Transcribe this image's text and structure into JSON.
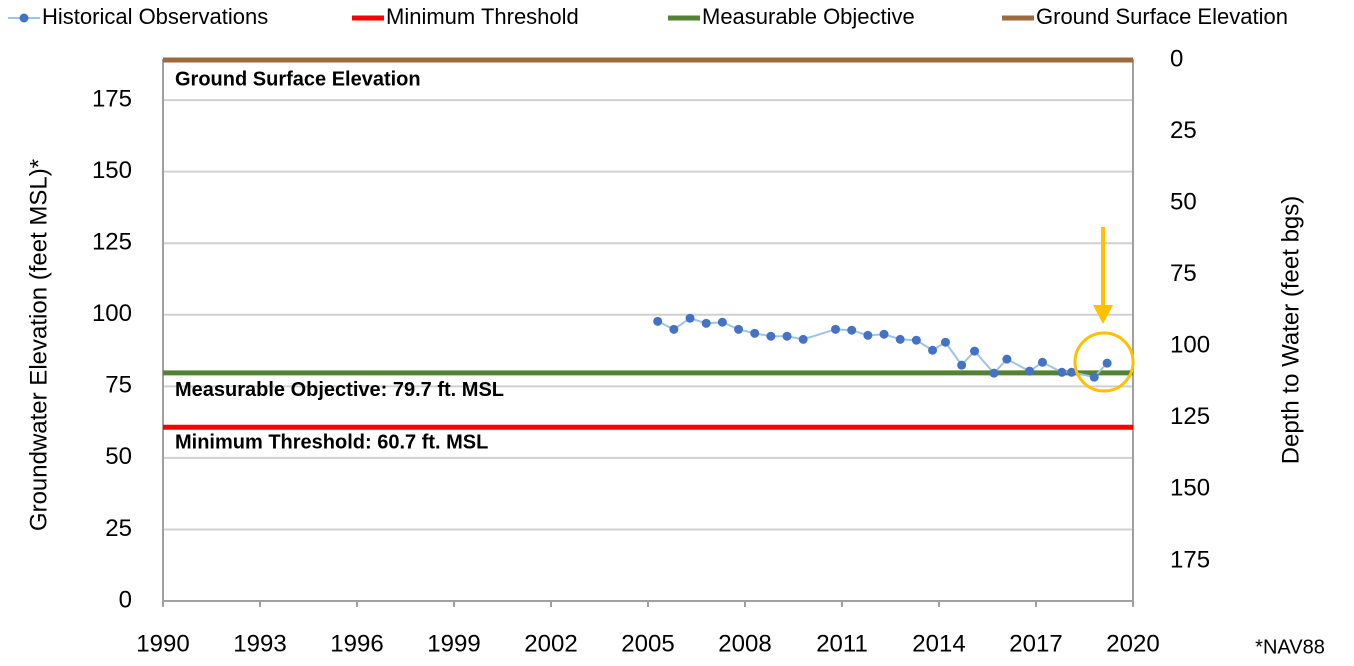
{
  "chart_data": {
    "type": "line",
    "legend_position": "top",
    "y_label": "Groundwater Elevation (feet MSL)*",
    "y2_label": "Depth to Water (feet bgs)",
    "footnote": "*NAV88",
    "xlim": [
      1990,
      2020
    ],
    "xticks": [
      1990,
      1993,
      1996,
      1999,
      2002,
      2005,
      2008,
      2011,
      2014,
      2017,
      2020
    ],
    "ylim": [
      0,
      189
    ],
    "yticks": [
      0,
      25,
      50,
      75,
      100,
      125,
      150,
      175
    ],
    "y2lim": [
      189,
      0
    ],
    "y2ticks": [
      0,
      25,
      50,
      75,
      100,
      125,
      150,
      175
    ],
    "grid": true,
    "series": [
      {
        "name": "Historical Observations",
        "color": "#4472c4",
        "line_color": "#9dc3e6",
        "x": [
          2005.3,
          2005.8,
          2006.3,
          2006.8,
          2007.3,
          2007.8,
          2008.3,
          2008.8,
          2009.3,
          2009.8,
          2010.8,
          2011.3,
          2011.8,
          2012.3,
          2012.8,
          2013.3,
          2013.8,
          2014.2,
          2014.7,
          2015.1,
          2015.7,
          2016.1,
          2016.8,
          2017.2,
          2017.8,
          2018.1,
          2018.8,
          2019.2
        ],
        "values": [
          97.7,
          94.9,
          98.8,
          97.0,
          97.4,
          94.9,
          93.5,
          92.5,
          92.5,
          91.4,
          94.9,
          94.6,
          92.8,
          93.2,
          91.4,
          91.1,
          87.6,
          90.4,
          82.4,
          87.3,
          79.6,
          84.5,
          80.3,
          83.4,
          79.9,
          79.9,
          78.2,
          83.1
        ]
      }
    ],
    "reference_lines": [
      {
        "name": "Minimum Threshold",
        "color": "#ff0000",
        "value": 60.7,
        "label": "Minimum Threshold: 60.7 ft. MSL"
      },
      {
        "name": "Measurable Objective",
        "color": "#548235",
        "value": 79.7,
        "label": "Measurable Objective: 79.7 ft. MSL"
      },
      {
        "name": "Ground Surface Elevation",
        "color": "#9c6a3c",
        "value": 189,
        "label": "Ground Surface Elevation"
      }
    ]
  }
}
